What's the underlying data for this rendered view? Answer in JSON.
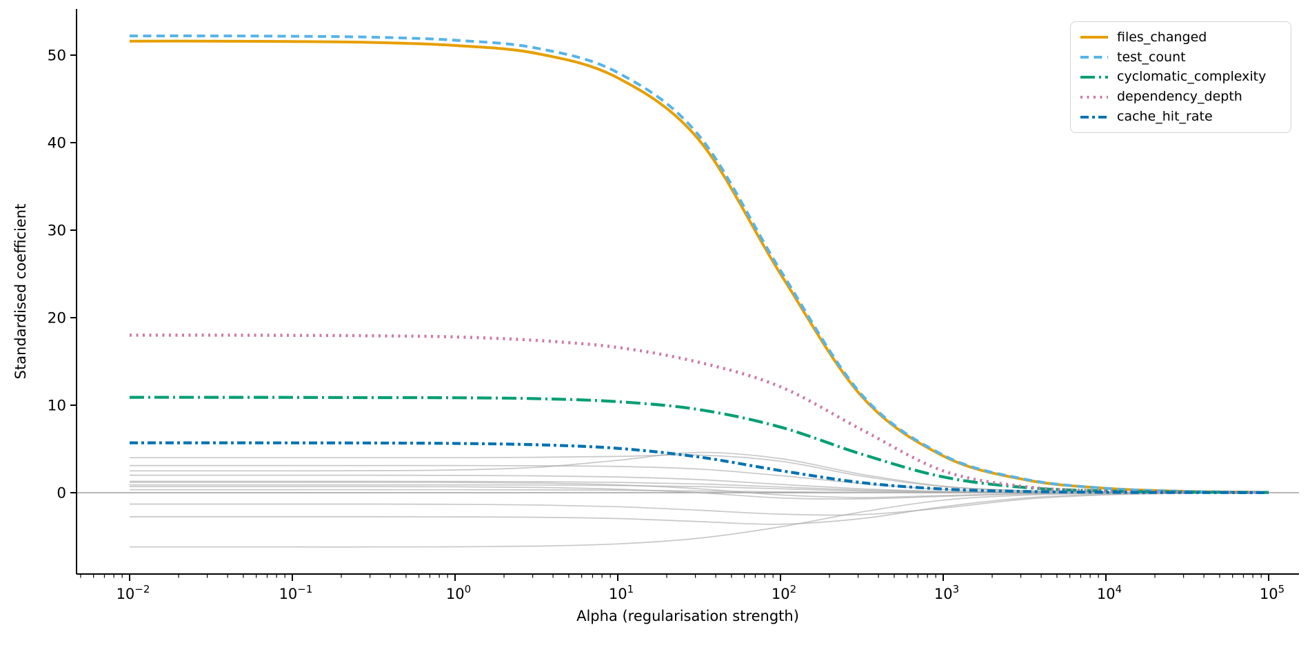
{
  "chart_data": {
    "type": "line",
    "title": "",
    "xlabel": "Alpha (regularisation strength)",
    "ylabel": "Standardised coefficient",
    "x_scale": "log",
    "xlim": [
      0.005,
      150000
    ],
    "ylim": [
      -9.2,
      55.3
    ],
    "x_tick_exponents": [
      -2,
      -1,
      0,
      1,
      2,
      3,
      4,
      5
    ],
    "y_ticks": [
      0,
      10,
      20,
      30,
      40,
      50
    ],
    "grid": false,
    "zero_line_y": 0,
    "legend_position": "upper right",
    "alphas": [
      0.01,
      0.0316,
      0.1,
      0.316,
      1,
      3.16,
      10,
      31.6,
      100,
      316,
      1000,
      3162,
      10000,
      31623,
      100000
    ],
    "series": [
      {
        "name": "files_changed",
        "color": "#E69F00",
        "style": "solid",
        "width": 4,
        "values": [
          51.6,
          51.6,
          51.56,
          51.45,
          51.1,
          50.2,
          47.4,
          40.3,
          25.0,
          11.0,
          4.2,
          1.5,
          0.5,
          0.15,
          0.05
        ]
      },
      {
        "name": "test_count",
        "color": "#56B4E9",
        "style": "dashed",
        "width": 4,
        "values": [
          52.2,
          52.2,
          52.16,
          52.05,
          51.7,
          50.8,
          48.0,
          40.8,
          25.4,
          11.2,
          4.3,
          1.55,
          0.5,
          0.15,
          0.05
        ]
      },
      {
        "name": "cyclomatic_complexity",
        "color": "#009E73",
        "style": "dashdot_long",
        "width": 4.2,
        "values": [
          10.9,
          10.9,
          10.89,
          10.87,
          10.85,
          10.75,
          10.4,
          9.5,
          7.5,
          4.4,
          1.8,
          0.6,
          0.2,
          0.07,
          0.02
        ]
      },
      {
        "name": "dependency_depth",
        "color": "#CC79A7",
        "style": "dotted",
        "width": 4.5,
        "values": [
          18.0,
          18.0,
          17.98,
          17.93,
          17.8,
          17.4,
          16.6,
          14.9,
          12.1,
          7.2,
          2.5,
          0.7,
          0.2,
          0.06,
          0.02
        ]
      },
      {
        "name": "cache_hit_rate",
        "color": "#0072B2",
        "style": "dashdot",
        "width": 4.2,
        "values": [
          5.7,
          5.7,
          5.69,
          5.68,
          5.63,
          5.48,
          5.07,
          4.08,
          2.53,
          1.15,
          0.42,
          0.14,
          0.05,
          0.02,
          0.01
        ]
      }
    ],
    "background_series": {
      "color": "#ababab",
      "opacity": 0.65,
      "width": 1.7,
      "values": [
        [
          4.0,
          4.0,
          4.0,
          4.0,
          4.0,
          4.05,
          4.15,
          4.3,
          3.6,
          1.9,
          0.7,
          0.22,
          0.07,
          0.02,
          0.0
        ],
        [
          3.1,
          3.1,
          3.1,
          3.1,
          3.1,
          3.08,
          3.0,
          2.7,
          1.95,
          1.05,
          0.38,
          0.12,
          0.04,
          0.01,
          0.0
        ],
        [
          2.5,
          2.5,
          2.5,
          2.52,
          2.6,
          2.9,
          3.7,
          4.6,
          3.9,
          2.1,
          0.75,
          0.24,
          0.07,
          0.02,
          0.0
        ],
        [
          2.0,
          2.0,
          2.0,
          2.0,
          1.98,
          1.93,
          1.8,
          1.5,
          0.95,
          0.45,
          0.15,
          0.05,
          0.01,
          0.0,
          0.0
        ],
        [
          1.3,
          1.3,
          1.3,
          1.3,
          1.29,
          1.26,
          1.18,
          1.0,
          0.65,
          0.3,
          0.1,
          0.03,
          0.01,
          0.0,
          0.0
        ],
        [
          1.2,
          1.2,
          1.2,
          1.2,
          1.18,
          1.1,
          0.9,
          0.45,
          -0.25,
          -0.55,
          -0.32,
          -0.1,
          -0.03,
          -0.01,
          0.0
        ],
        [
          0.9,
          0.9,
          0.9,
          0.9,
          0.9,
          0.88,
          0.82,
          0.7,
          0.45,
          0.2,
          0.07,
          0.02,
          0.0,
          0.0,
          0.0
        ],
        [
          0.7,
          0.7,
          0.7,
          0.7,
          0.68,
          0.6,
          0.4,
          0.0,
          -0.6,
          -0.7,
          -0.42,
          -0.15,
          -0.05,
          -0.01,
          0.0
        ],
        [
          0.35,
          0.35,
          0.35,
          0.35,
          0.34,
          0.32,
          0.28,
          0.2,
          0.1,
          0.04,
          0.01,
          0.0,
          0.0,
          0.0,
          0.0
        ],
        [
          -1.3,
          -1.3,
          -1.3,
          -1.3,
          -1.32,
          -1.4,
          -1.6,
          -2.0,
          -2.45,
          -2.5,
          -1.75,
          -0.75,
          -0.25,
          -0.08,
          -0.02
        ],
        [
          -2.75,
          -2.75,
          -2.75,
          -2.75,
          -2.76,
          -2.8,
          -2.95,
          -3.3,
          -3.6,
          -2.95,
          -1.6,
          -0.6,
          -0.18,
          -0.05,
          -0.01
        ],
        [
          -6.2,
          -6.2,
          -6.2,
          -6.2,
          -6.18,
          -6.1,
          -5.85,
          -5.2,
          -3.9,
          -2.2,
          -0.85,
          -0.28,
          -0.09,
          -0.03,
          -0.01
        ]
      ]
    }
  }
}
